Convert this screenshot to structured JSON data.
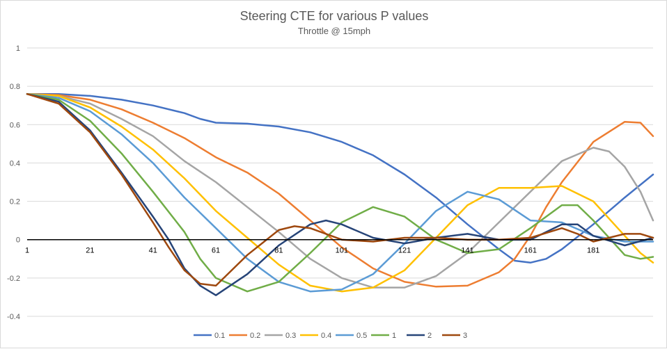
{
  "chart_data": {
    "type": "line",
    "title": "Steering CTE for various P values",
    "subtitle": "Throttle @ 15mph",
    "xlabel": "",
    "ylabel": "",
    "x_range": [
      1,
      200
    ],
    "x_tick_labels": [
      "1",
      "21",
      "41",
      "61",
      "81",
      "101",
      "121",
      "141",
      "161",
      "181"
    ],
    "ylim": [
      -0.4,
      1.0
    ],
    "y_tick_labels": [
      "-0.4",
      "-0.2",
      "0",
      "0.2",
      "0.4",
      "0.6",
      "0.8",
      "1"
    ],
    "grid": true,
    "legend_position": "bottom",
    "series": [
      {
        "name": "0.1",
        "color": "#4472C4",
        "points": [
          [
            1,
            0.76
          ],
          [
            11,
            0.76
          ],
          [
            21,
            0.75
          ],
          [
            31,
            0.73
          ],
          [
            41,
            0.7
          ],
          [
            51,
            0.66
          ],
          [
            56,
            0.63
          ],
          [
            61,
            0.61
          ],
          [
            71,
            0.605
          ],
          [
            81,
            0.59
          ],
          [
            91,
            0.56
          ],
          [
            101,
            0.51
          ],
          [
            111,
            0.44
          ],
          [
            121,
            0.34
          ],
          [
            131,
            0.22
          ],
          [
            141,
            0.08
          ],
          [
            151,
            -0.05
          ],
          [
            156,
            -0.11
          ],
          [
            161,
            -0.12
          ],
          [
            166,
            -0.1
          ],
          [
            171,
            -0.05
          ],
          [
            181,
            0.08
          ],
          [
            191,
            0.22
          ],
          [
            200,
            0.34
          ]
        ]
      },
      {
        "name": "0.2",
        "color": "#ED7D31",
        "points": [
          [
            1,
            0.76
          ],
          [
            11,
            0.755
          ],
          [
            21,
            0.73
          ],
          [
            31,
            0.68
          ],
          [
            41,
            0.61
          ],
          [
            51,
            0.53
          ],
          [
            61,
            0.43
          ],
          [
            71,
            0.35
          ],
          [
            81,
            0.24
          ],
          [
            91,
            0.1
          ],
          [
            101,
            -0.04
          ],
          [
            111,
            -0.15
          ],
          [
            121,
            -0.22
          ],
          [
            131,
            -0.245
          ],
          [
            141,
            -0.24
          ],
          [
            151,
            -0.17
          ],
          [
            156,
            -0.1
          ],
          [
            161,
            0.02
          ],
          [
            166,
            0.17
          ],
          [
            171,
            0.3
          ],
          [
            181,
            0.51
          ],
          [
            191,
            0.615
          ],
          [
            196,
            0.61
          ],
          [
            200,
            0.54
          ]
        ]
      },
      {
        "name": "0.3",
        "color": "#A5A5A5",
        "points": [
          [
            1,
            0.76
          ],
          [
            11,
            0.75
          ],
          [
            21,
            0.71
          ],
          [
            31,
            0.63
          ],
          [
            41,
            0.54
          ],
          [
            51,
            0.41
          ],
          [
            61,
            0.3
          ],
          [
            71,
            0.17
          ],
          [
            81,
            0.04
          ],
          [
            91,
            -0.1
          ],
          [
            101,
            -0.2
          ],
          [
            111,
            -0.25
          ],
          [
            121,
            -0.25
          ],
          [
            131,
            -0.19
          ],
          [
            141,
            -0.07
          ],
          [
            151,
            0.09
          ],
          [
            161,
            0.25
          ],
          [
            171,
            0.41
          ],
          [
            181,
            0.48
          ],
          [
            186,
            0.46
          ],
          [
            191,
            0.38
          ],
          [
            196,
            0.25
          ],
          [
            200,
            0.1
          ]
        ]
      },
      {
        "name": "0.4",
        "color": "#FFC000",
        "points": [
          [
            1,
            0.76
          ],
          [
            11,
            0.75
          ],
          [
            21,
            0.69
          ],
          [
            31,
            0.59
          ],
          [
            41,
            0.47
          ],
          [
            51,
            0.32
          ],
          [
            61,
            0.15
          ],
          [
            71,
            0.01
          ],
          [
            81,
            -0.13
          ],
          [
            91,
            -0.24
          ],
          [
            101,
            -0.27
          ],
          [
            111,
            -0.25
          ],
          [
            121,
            -0.16
          ],
          [
            131,
            0.01
          ],
          [
            141,
            0.18
          ],
          [
            151,
            0.27
          ],
          [
            161,
            0.27
          ],
          [
            171,
            0.28
          ],
          [
            181,
            0.2
          ],
          [
            191,
            0.02
          ],
          [
            196,
            -0.07
          ],
          [
            200,
            -0.12
          ]
        ]
      },
      {
        "name": "0.5",
        "color": "#5B9BD5",
        "points": [
          [
            1,
            0.76
          ],
          [
            11,
            0.74
          ],
          [
            21,
            0.67
          ],
          [
            31,
            0.55
          ],
          [
            41,
            0.4
          ],
          [
            51,
            0.22
          ],
          [
            56,
            0.14
          ],
          [
            61,
            0.06
          ],
          [
            71,
            -0.1
          ],
          [
            81,
            -0.22
          ],
          [
            91,
            -0.27
          ],
          [
            101,
            -0.26
          ],
          [
            111,
            -0.18
          ],
          [
            121,
            -0.02
          ],
          [
            131,
            0.15
          ],
          [
            141,
            0.25
          ],
          [
            151,
            0.21
          ],
          [
            161,
            0.1
          ],
          [
            171,
            0.09
          ],
          [
            181,
            0.02
          ],
          [
            191,
            -0.01
          ],
          [
            200,
            -0.01
          ]
        ]
      },
      {
        "name": "1",
        "color": "#70AD47",
        "points": [
          [
            1,
            0.76
          ],
          [
            11,
            0.73
          ],
          [
            21,
            0.62
          ],
          [
            31,
            0.45
          ],
          [
            41,
            0.25
          ],
          [
            51,
            0.04
          ],
          [
            56,
            -0.1
          ],
          [
            61,
            -0.2
          ],
          [
            71,
            -0.27
          ],
          [
            81,
            -0.22
          ],
          [
            91,
            -0.07
          ],
          [
            101,
            0.09
          ],
          [
            111,
            0.17
          ],
          [
            121,
            0.12
          ],
          [
            131,
            0.0
          ],
          [
            141,
            -0.07
          ],
          [
            151,
            -0.05
          ],
          [
            161,
            0.06
          ],
          [
            171,
            0.18
          ],
          [
            176,
            0.18
          ],
          [
            181,
            0.1
          ],
          [
            191,
            -0.08
          ],
          [
            196,
            -0.1
          ],
          [
            200,
            -0.09
          ]
        ]
      },
      {
        "name": "2",
        "color": "#264478",
        "points": [
          [
            1,
            0.76
          ],
          [
            11,
            0.72
          ],
          [
            21,
            0.57
          ],
          [
            31,
            0.35
          ],
          [
            41,
            0.12
          ],
          [
            46,
            0.0
          ],
          [
            51,
            -0.15
          ],
          [
            56,
            -0.24
          ],
          [
            61,
            -0.29
          ],
          [
            71,
            -0.18
          ],
          [
            81,
            -0.03
          ],
          [
            91,
            0.08
          ],
          [
            96,
            0.1
          ],
          [
            101,
            0.08
          ],
          [
            111,
            0.01
          ],
          [
            121,
            -0.02
          ],
          [
            131,
            0.01
          ],
          [
            141,
            0.03
          ],
          [
            151,
            0.0
          ],
          [
            161,
            0.0
          ],
          [
            171,
            0.08
          ],
          [
            176,
            0.08
          ],
          [
            181,
            0.02
          ],
          [
            191,
            -0.03
          ],
          [
            200,
            0.01
          ]
        ]
      },
      {
        "name": "3",
        "color": "#9E480E",
        "points": [
          [
            1,
            0.76
          ],
          [
            11,
            0.71
          ],
          [
            21,
            0.56
          ],
          [
            31,
            0.34
          ],
          [
            41,
            0.09
          ],
          [
            46,
            -0.04
          ],
          [
            51,
            -0.16
          ],
          [
            56,
            -0.23
          ],
          [
            61,
            -0.24
          ],
          [
            71,
            -0.08
          ],
          [
            81,
            0.05
          ],
          [
            86,
            0.07
          ],
          [
            91,
            0.06
          ],
          [
            101,
            0.0
          ],
          [
            111,
            -0.01
          ],
          [
            121,
            0.01
          ],
          [
            131,
            0.01
          ],
          [
            141,
            0.0
          ],
          [
            151,
            0.0
          ],
          [
            161,
            0.01
          ],
          [
            171,
            0.06
          ],
          [
            176,
            0.03
          ],
          [
            181,
            -0.01
          ],
          [
            191,
            0.03
          ],
          [
            196,
            0.03
          ],
          [
            200,
            0.01
          ]
        ]
      }
    ]
  }
}
